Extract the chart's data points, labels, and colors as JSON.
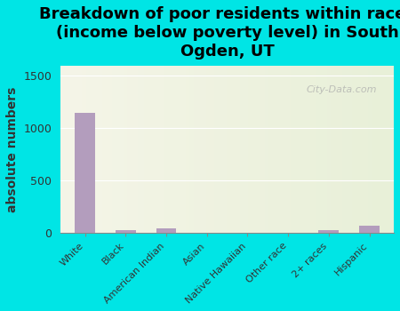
{
  "categories": [
    "White",
    "Black",
    "American Indian",
    "Asian",
    "Native Hawaiian",
    "Other race",
    "2+ races",
    "Hispanic"
  ],
  "values": [
    1150,
    30,
    45,
    0,
    0,
    0,
    30,
    75
  ],
  "bar_color": "#b39dbd",
  "title": "Breakdown of poor residents within races\n(income below poverty level) in South\nOgden, UT",
  "ylabel": "absolute numbers",
  "ylim": [
    0,
    1600
  ],
  "yticks": [
    0,
    500,
    1000,
    1500
  ],
  "background_color": "#00e5e5",
  "plot_bg_top": "#f5f5e8",
  "plot_bg_bottom": "#e8f0d8",
  "watermark": "City-Data.com",
  "title_fontsize": 13,
  "ylabel_fontsize": 10
}
